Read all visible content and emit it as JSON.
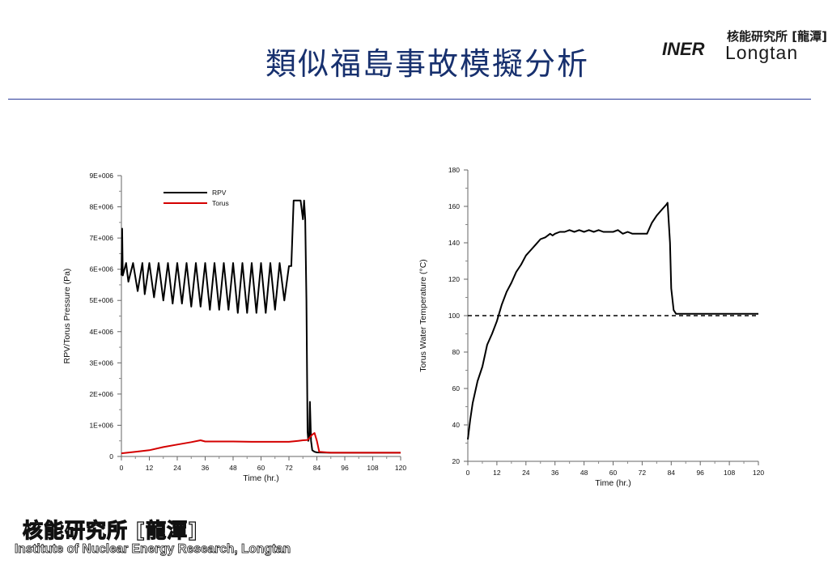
{
  "slide": {
    "title": "類似福島事故模擬分析",
    "logo_top": {
      "mark": "INER",
      "name_cn": "核能研究所 [龍潭]",
      "name_en": "Longtan"
    },
    "footer": {
      "name_cn": "核能研究所 [龍潭]",
      "name_en": "Institute of Nuclear Energy Research, Longtan"
    }
  },
  "colors": {
    "title": "#17306e",
    "rule": "#2a3a9a",
    "rpv": "#000000",
    "torus": "#d40000"
  },
  "chart_data": [
    {
      "type": "line",
      "xlabel": "Time (hr.)",
      "ylabel": "RPV/Torus Pressure (Pa)",
      "xlim": [
        0,
        120
      ],
      "ylim": [
        0,
        9000000
      ],
      "x_ticks": [
        "0",
        "12",
        "24",
        "36",
        "48",
        "60",
        "72",
        "84",
        "96",
        "108",
        "120"
      ],
      "y_ticks": [
        "0",
        "1E+006",
        "2E+006",
        "3E+006",
        "4E+006",
        "5E+006",
        "6E+006",
        "7E+006",
        "8E+006",
        "9E+006"
      ],
      "legend": [
        "RPV",
        "Torus"
      ],
      "legend_position": "top-center",
      "series": [
        {
          "name": "RPV",
          "color": "#000000",
          "note": "oscillating SRV cycling between ~4.7E+006 and ~6.2E+006 Pa from 0 to 72 hr",
          "x": [
            0,
            0.3,
            0.6,
            2,
            3,
            5,
            7,
            9,
            10,
            12,
            14,
            16,
            18,
            20,
            22,
            24,
            26,
            28,
            30,
            32,
            34,
            36,
            38,
            40,
            42,
            44,
            46,
            48,
            50,
            52,
            54,
            56,
            58,
            60,
            62,
            64,
            66,
            68,
            70,
            72,
            73,
            74,
            77,
            78,
            78.5,
            79,
            79.5,
            80,
            80.3,
            80.7,
            81,
            81.5,
            82,
            83,
            84,
            90,
            100,
            110,
            120
          ],
          "y": [
            5800000,
            7300000,
            5800000,
            6200000,
            5600000,
            6200000,
            5300000,
            6200000,
            5200000,
            6200000,
            5100000,
            6200000,
            5000000,
            6200000,
            4900000,
            6200000,
            4900000,
            6200000,
            4800000,
            6200000,
            4800000,
            6200000,
            4700000,
            6200000,
            4700000,
            6200000,
            4700000,
            6200000,
            4600000,
            6200000,
            4600000,
            6200000,
            4600000,
            6200000,
            4600000,
            6200000,
            4700000,
            6200000,
            5000000,
            6100000,
            6100000,
            8200000,
            8200000,
            7600000,
            8200000,
            7600000,
            5000000,
            800000,
            500000,
            600000,
            1750000,
            500000,
            200000,
            150000,
            130000,
            120000,
            120000,
            120000,
            120000
          ]
        },
        {
          "name": "Torus",
          "color": "#d40000",
          "x": [
            0,
            6,
            12,
            18,
            24,
            30,
            34,
            36,
            40,
            48,
            56,
            64,
            72,
            76,
            78,
            80,
            82,
            83,
            84,
            85,
            90,
            100,
            110,
            120
          ],
          "y": [
            100000,
            150000,
            200000,
            300000,
            380000,
            460000,
            520000,
            480000,
            480000,
            480000,
            470000,
            470000,
            470000,
            500000,
            520000,
            530000,
            700000,
            750000,
            500000,
            150000,
            120000,
            120000,
            120000,
            120000
          ]
        }
      ]
    },
    {
      "type": "line",
      "xlabel": "Time (hr.)",
      "ylabel": "Torus Water Temperature (°C)",
      "xlim": [
        0,
        120
      ],
      "ylim": [
        20,
        180
      ],
      "x_ticks": [
        "0",
        "12",
        "24",
        "36",
        "48",
        "60",
        "72",
        "84",
        "96",
        "108",
        "120"
      ],
      "y_ticks": [
        "20",
        "40",
        "60",
        "80",
        "100",
        "120",
        "140",
        "160",
        "180"
      ],
      "reference_line": {
        "y": 100,
        "style": "dashed"
      },
      "series": [
        {
          "color": "#000000",
          "x": [
            0,
            1,
            2,
            3,
            4,
            6,
            8,
            10,
            12,
            14,
            16,
            18,
            20,
            22,
            24,
            26,
            28,
            30,
            32,
            34,
            35,
            36,
            38,
            40,
            42,
            44,
            46,
            48,
            50,
            52,
            54,
            56,
            58,
            60,
            62,
            64,
            66,
            68,
            70,
            72,
            74,
            75,
            76,
            77,
            78,
            80,
            82,
            82.5,
            83.5,
            84,
            85,
            86,
            88,
            90,
            100,
            110,
            120
          ],
          "y": [
            32,
            43,
            52,
            58,
            64,
            72,
            84,
            90,
            97,
            106,
            113,
            118,
            124,
            128,
            133,
            136,
            139,
            142,
            143,
            145,
            144,
            145,
            146,
            146,
            147,
            146,
            147,
            146,
            147,
            146,
            147,
            146,
            146,
            146,
            147,
            145,
            146,
            145,
            145,
            145,
            145,
            148,
            151,
            153,
            155,
            158,
            161,
            162,
            140,
            115,
            103,
            101,
            101,
            101,
            101,
            101,
            101
          ]
        }
      ]
    }
  ]
}
